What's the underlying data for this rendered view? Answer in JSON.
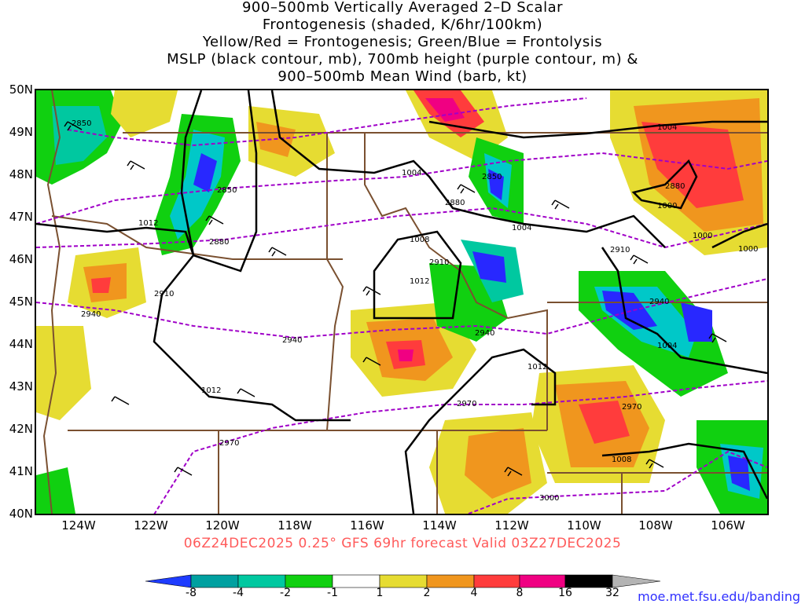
{
  "title": {
    "lines": [
      "900–500mb Vertically Averaged 2–D Scalar",
      "Frontogenesis (shaded, K/6hr/100km)",
      "Yellow/Red = Frontogenesis;  Green/Blue = Frontolysis",
      "MSLP (black contour, mb), 700mb height (purple contour, m) &",
      "900–500mb Mean Wind (barb, kt)"
    ]
  },
  "map": {
    "lat_labels": [
      "50N",
      "49N",
      "48N",
      "47N",
      "46N",
      "45N",
      "44N",
      "43N",
      "42N",
      "41N",
      "40N"
    ],
    "lon_labels": [
      "124W",
      "122W",
      "120W",
      "118W",
      "116W",
      "114W",
      "112W",
      "110W",
      "108W",
      "106W"
    ],
    "mslp_labels": [
      "1004",
      "1004",
      "1004",
      "1008",
      "1012",
      "1012",
      "1012",
      "1000",
      "1000",
      "1000",
      "1004",
      "1012",
      "1008"
    ],
    "height_labels": [
      "2850",
      "2850",
      "2850",
      "2880",
      "2880",
      "2880",
      "2910",
      "2910",
      "2910",
      "2940",
      "2940",
      "2940",
      "2940",
      "2970",
      "2970",
      "2970",
      "3000"
    ],
    "colors": {
      "frontolysis_strong": "#2828ff",
      "frontolysis": "#00c8c8",
      "frontolysis_weak": "#10d010",
      "frontogenesis_weak": "#e6dc32",
      "frontogenesis": "#f0961e",
      "frontogenesis_strong": "#ff3c3c",
      "frontogenesis_extreme": "#f00082",
      "mslp_contour": "#000000",
      "height_contour": "#a000c8",
      "border": "#7a5030"
    }
  },
  "valid_text": "06Z24DEC2025 0.25° GFS 69hr forecast Valid 03Z27DEC2025",
  "colorbar": {
    "labels": [
      "-8",
      "-4",
      "-2",
      "-1",
      "1",
      "2",
      "4",
      "8",
      "16",
      "32"
    ],
    "colors": [
      "#1e3cff",
      "#00a0a0",
      "#00c8a0",
      "#10d010",
      "#ffffff",
      "#e6dc32",
      "#f0961e",
      "#ff3c3c",
      "#f00082",
      "#000000",
      "#b4b4b4"
    ]
  },
  "credit": "moe.met.fsu.edu/banding"
}
